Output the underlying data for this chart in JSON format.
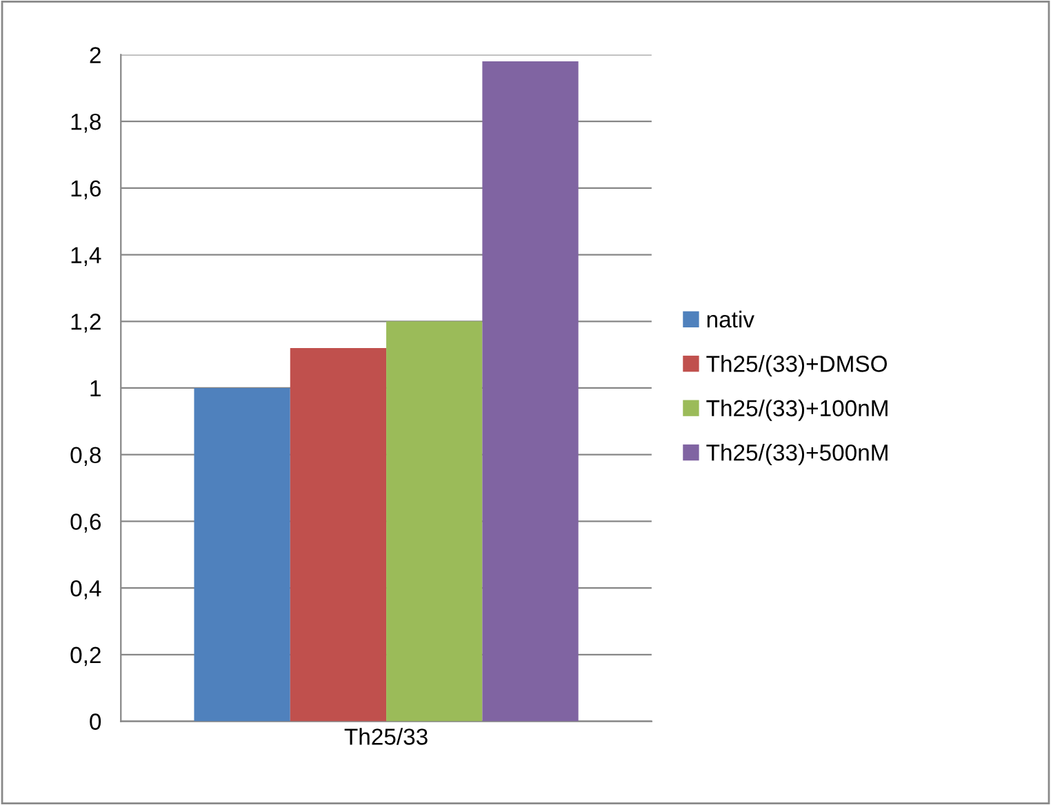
{
  "chart_data": {
    "type": "bar",
    "categories": [
      "Th25/33"
    ],
    "series": [
      {
        "name": "nativ",
        "color": "#4f81bd",
        "values": [
          1.0
        ]
      },
      {
        "name": "Th25/(33)+DMSO",
        "color": "#c0504d",
        "values": [
          1.12
        ]
      },
      {
        "name": "Th25/(33)+100nM",
        "color": "#9bbb59",
        "values": [
          1.2
        ]
      },
      {
        "name": "Th25/(33)+500nM",
        "color": "#8064a2",
        "values": [
          1.98
        ]
      }
    ],
    "ylim": [
      0,
      2
    ],
    "yticks": [
      {
        "value": 0,
        "label": "0"
      },
      {
        "value": 0.2,
        "label": "0,2"
      },
      {
        "value": 0.4,
        "label": "0,4"
      },
      {
        "value": 0.6,
        "label": "0,6"
      },
      {
        "value": 0.8,
        "label": "0,8"
      },
      {
        "value": 1,
        "label": "1"
      },
      {
        "value": 1.2,
        "label": "1,2"
      },
      {
        "value": 1.4,
        "label": "1,4"
      },
      {
        "value": 1.6,
        "label": "1,6"
      },
      {
        "value": 1.8,
        "label": "1,8"
      },
      {
        "value": 2,
        "label": "2"
      }
    ],
    "grid": "y",
    "legend": "right"
  }
}
